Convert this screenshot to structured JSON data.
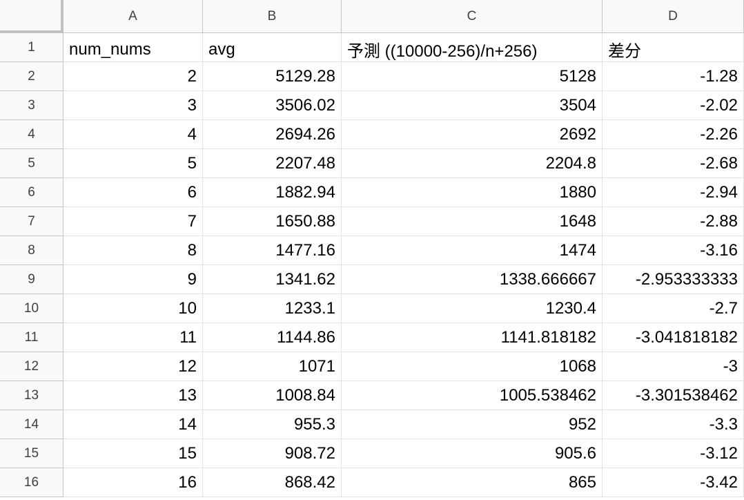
{
  "columns": [
    "A",
    "B",
    "C",
    "D"
  ],
  "header_row": {
    "row_number": "1",
    "cells": [
      "num_nums",
      "avg",
      "予測 ((10000-256)/n+256)",
      "差分"
    ]
  },
  "rows": [
    {
      "row_number": "2",
      "cells": [
        "2",
        "5129.28",
        "5128",
        "-1.28"
      ]
    },
    {
      "row_number": "3",
      "cells": [
        "3",
        "3506.02",
        "3504",
        "-2.02"
      ]
    },
    {
      "row_number": "4",
      "cells": [
        "4",
        "2694.26",
        "2692",
        "-2.26"
      ]
    },
    {
      "row_number": "5",
      "cells": [
        "5",
        "2207.48",
        "2204.8",
        "-2.68"
      ]
    },
    {
      "row_number": "6",
      "cells": [
        "6",
        "1882.94",
        "1880",
        "-2.94"
      ]
    },
    {
      "row_number": "7",
      "cells": [
        "7",
        "1650.88",
        "1648",
        "-2.88"
      ]
    },
    {
      "row_number": "8",
      "cells": [
        "8",
        "1477.16",
        "1474",
        "-3.16"
      ]
    },
    {
      "row_number": "9",
      "cells": [
        "9",
        "1341.62",
        "1338.666667",
        "-2.953333333"
      ]
    },
    {
      "row_number": "10",
      "cells": [
        "10",
        "1233.1",
        "1230.4",
        "-2.7"
      ]
    },
    {
      "row_number": "11",
      "cells": [
        "11",
        "1144.86",
        "1141.818182",
        "-3.041818182"
      ]
    },
    {
      "row_number": "12",
      "cells": [
        "12",
        "1071",
        "1068",
        "-3"
      ]
    },
    {
      "row_number": "13",
      "cells": [
        "13",
        "1008.84",
        "1005.538462",
        "-3.301538462"
      ]
    },
    {
      "row_number": "14",
      "cells": [
        "14",
        "955.3",
        "952",
        "-3.3"
      ]
    },
    {
      "row_number": "15",
      "cells": [
        "15",
        "908.72",
        "905.6",
        "-3.12"
      ]
    },
    {
      "row_number": "16",
      "cells": [
        "16",
        "868.42",
        "865",
        "-3.42"
      ]
    }
  ],
  "colors": {
    "header_bg": "#f8f9fa",
    "gridline": "#e2e3e3",
    "freeze_bar": "#c0c0c0"
  }
}
